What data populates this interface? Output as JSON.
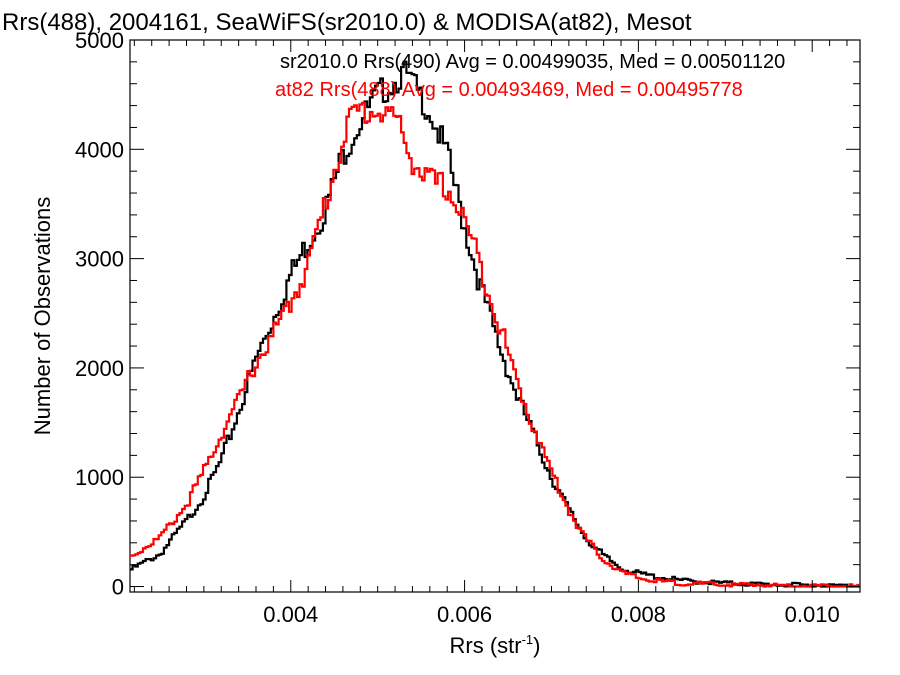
{
  "chart_data": {
    "type": "line",
    "title": "Rrs(488), 2004161, SeaWiFS(sr2010.0) & MODISA(at82), Mesot",
    "xlabel": "Rrs (str",
    "xlabel_sup": "-1",
    "xlabel_close": ")",
    "ylabel": "Number of Observations",
    "xlim": [
      0.00215,
      0.01055
    ],
    "ylim": [
      -50,
      5000
    ],
    "x_ticks": [
      0.004,
      0.006,
      0.008,
      0.01
    ],
    "x_tick_labels": [
      "0.004",
      "0.006",
      "0.008",
      "0.010"
    ],
    "y_ticks": [
      0,
      1000,
      2000,
      3000,
      4000,
      5000
    ],
    "y_tick_labels": [
      "0",
      "1000",
      "2000",
      "3000",
      "4000",
      "5000"
    ],
    "legend_position": "top",
    "series": [
      {
        "name": "sr2010.0",
        "legend": "sr2010.0 Rrs(490) Avg = 0.00499035, Med = 0.00501120",
        "color": "#000000",
        "x": [
          0.00215,
          0.0025,
          0.0028,
          0.003,
          0.0032,
          0.0034,
          0.0036,
          0.0038,
          0.004,
          0.0042,
          0.0044,
          0.0046,
          0.0048,
          0.005,
          0.0052,
          0.0053,
          0.0054,
          0.0056,
          0.0058,
          0.006,
          0.0062,
          0.0064,
          0.0066,
          0.0068,
          0.007,
          0.0072,
          0.0074,
          0.0076,
          0.0078,
          0.008,
          0.0082,
          0.0085,
          0.009,
          0.0095,
          0.01,
          0.01055
        ],
        "y": [
          150,
          300,
          600,
          830,
          1150,
          1600,
          2080,
          2450,
          2850,
          3150,
          3450,
          3950,
          4250,
          4500,
          4620,
          4700,
          4600,
          4350,
          3950,
          3300,
          2700,
          2200,
          1750,
          1380,
          1000,
          700,
          440,
          280,
          170,
          120,
          90,
          55,
          30,
          18,
          10,
          5
        ]
      },
      {
        "name": "at82",
        "legend": "at82 Rrs(488) Avg = 0.00493469, Med = 0.00495778",
        "color": "#ff0000",
        "x": [
          0.00215,
          0.0025,
          0.0028,
          0.003,
          0.0032,
          0.0034,
          0.0036,
          0.0038,
          0.004,
          0.0042,
          0.0044,
          0.0046,
          0.0047,
          0.0048,
          0.005,
          0.0052,
          0.0054,
          0.0056,
          0.0058,
          0.006,
          0.0062,
          0.0064,
          0.0066,
          0.0068,
          0.007,
          0.0072,
          0.0074,
          0.0076,
          0.0078,
          0.008,
          0.0082,
          0.0085,
          0.009,
          0.0095,
          0.01,
          0.01055
        ],
        "y": [
          270,
          450,
          750,
          1050,
          1400,
          1700,
          2050,
          2300,
          2600,
          2950,
          3500,
          4100,
          4300,
          4350,
          4350,
          4300,
          3900,
          3700,
          3650,
          3350,
          2900,
          2400,
          1880,
          1450,
          1050,
          700,
          430,
          250,
          130,
          80,
          50,
          30,
          18,
          12,
          6,
          3
        ]
      }
    ]
  }
}
